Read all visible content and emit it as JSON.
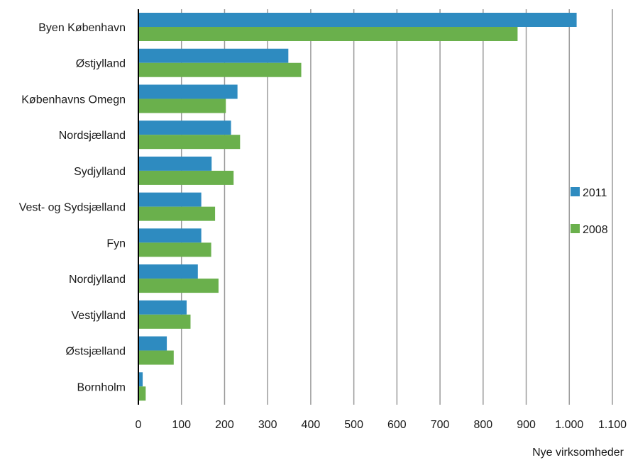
{
  "chart_data": {
    "type": "bar",
    "orientation": "horizontal",
    "categories": [
      "Byen København",
      "Østjylland",
      "Københavns Omegn",
      "Nordsjælland",
      "Sydjylland",
      "Vest- og Sydsjælland",
      "Fyn",
      "Nordjylland",
      "Vestjylland",
      "Østsjælland",
      "Bornholm"
    ],
    "series": [
      {
        "name": "2011",
        "color": "#2E8BC0",
        "values": [
          1017,
          348,
          230,
          215,
          170,
          146,
          146,
          138,
          112,
          66,
          10
        ]
      },
      {
        "name": "2008",
        "color": "#6AB04C",
        "values": [
          880,
          378,
          203,
          236,
          221,
          178,
          169,
          186,
          121,
          82,
          17
        ]
      }
    ],
    "xlabel": "Nye virksomheder",
    "ylabel": "",
    "xlim": [
      0,
      1100
    ],
    "xticks": [
      0,
      100,
      200,
      300,
      400,
      500,
      600,
      700,
      800,
      900,
      1000,
      1100
    ],
    "xtick_labels": [
      "0",
      "100",
      "200",
      "300",
      "400",
      "500",
      "600",
      "700",
      "800",
      "900",
      "1.000",
      "1.100"
    ],
    "grid": "vertical",
    "legend_position": "right"
  }
}
